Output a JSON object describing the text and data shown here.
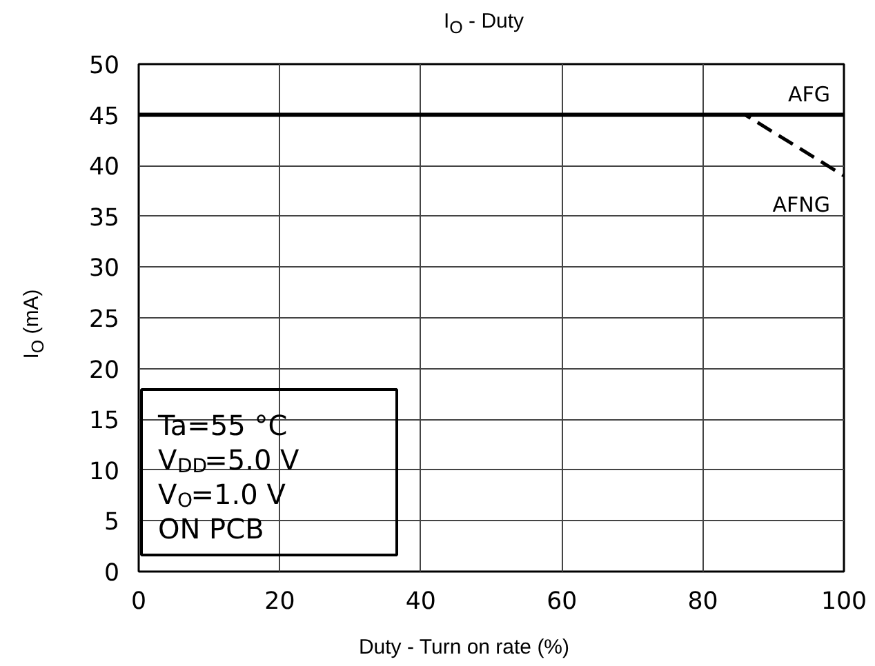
{
  "chart_data": {
    "type": "line",
    "title": "I$_{O}$ - Duty",
    "xlabel": "Duty - Turn on rate (%)",
    "ylabel": "I$_{O}$ (mA)",
    "series": [
      {
        "name": "AFG",
        "color": "#000000",
        "line_style": "solid",
        "x": [
          0,
          100
        ],
        "values": [
          45,
          45
        ]
      },
      {
        "name": "AFNG",
        "color": "#000000",
        "line_style": "dashed",
        "x": [
          0,
          86,
          100
        ],
        "values": [
          45,
          45,
          39
        ]
      }
    ],
    "xlim": [
      0,
      100
    ],
    "xticks": [
      0,
      20,
      40,
      60,
      80,
      100
    ],
    "ylim": [
      0,
      50
    ],
    "yticks": [
      0,
      5,
      10,
      15,
      20,
      25,
      30,
      35,
      40,
      45,
      50
    ],
    "grid": true,
    "legend": false,
    "marker": "none",
    "annotations": [
      "Ta=55 °C",
      "V$_{DD}$=5.0 V",
      "V$_{O}$=1.0 V",
      "ON PCB"
    ]
  }
}
